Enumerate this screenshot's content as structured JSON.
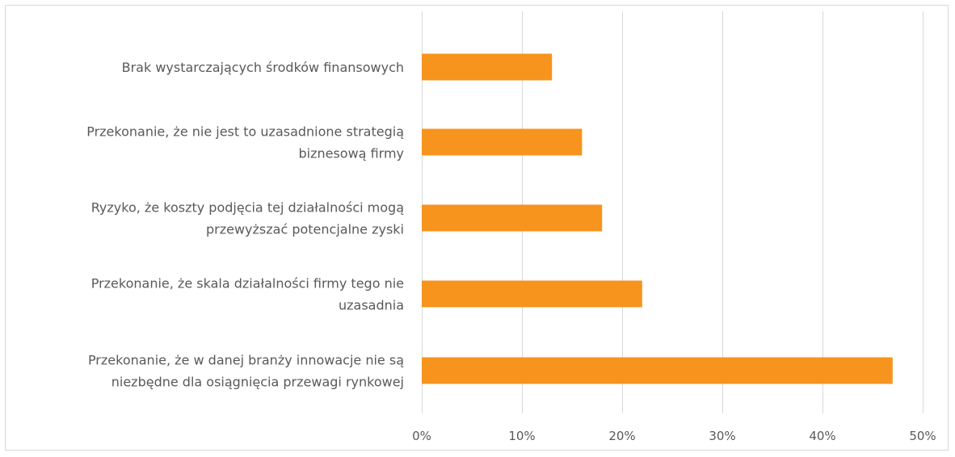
{
  "chart_data": {
    "type": "bar",
    "orientation": "horizontal",
    "categories": [
      [
        "Brak wystarczających środków finansowych"
      ],
      [
        "Przekonanie, że nie jest to uzasadnione strategią",
        "biznesową firmy"
      ],
      [
        "Ryzyko, że koszty podjęcia tej działalności mogą",
        "przewyższać potencjalne zyski"
      ],
      [
        "Przekonanie, że skala działalności firmy tego nie",
        "uzasadnia"
      ],
      [
        "Przekonanie, że w danej branży innowacje nie są",
        "niezbędne dla osiągnięcia przewagi rynkowej"
      ]
    ],
    "values": [
      13,
      16,
      18,
      22,
      47
    ],
    "xlim": [
      0,
      50
    ],
    "xticks": [
      0,
      10,
      20,
      30,
      40,
      50
    ],
    "tick_labels": [
      "0%",
      "10%",
      "20%",
      "30%",
      "40%",
      "50%"
    ],
    "title": "",
    "xlabel": "",
    "ylabel": "",
    "grid": "vertical",
    "legend": "none",
    "bar_color": "#f7941d",
    "grid_color": "#d9d9d9",
    "text_color": "#595959"
  }
}
